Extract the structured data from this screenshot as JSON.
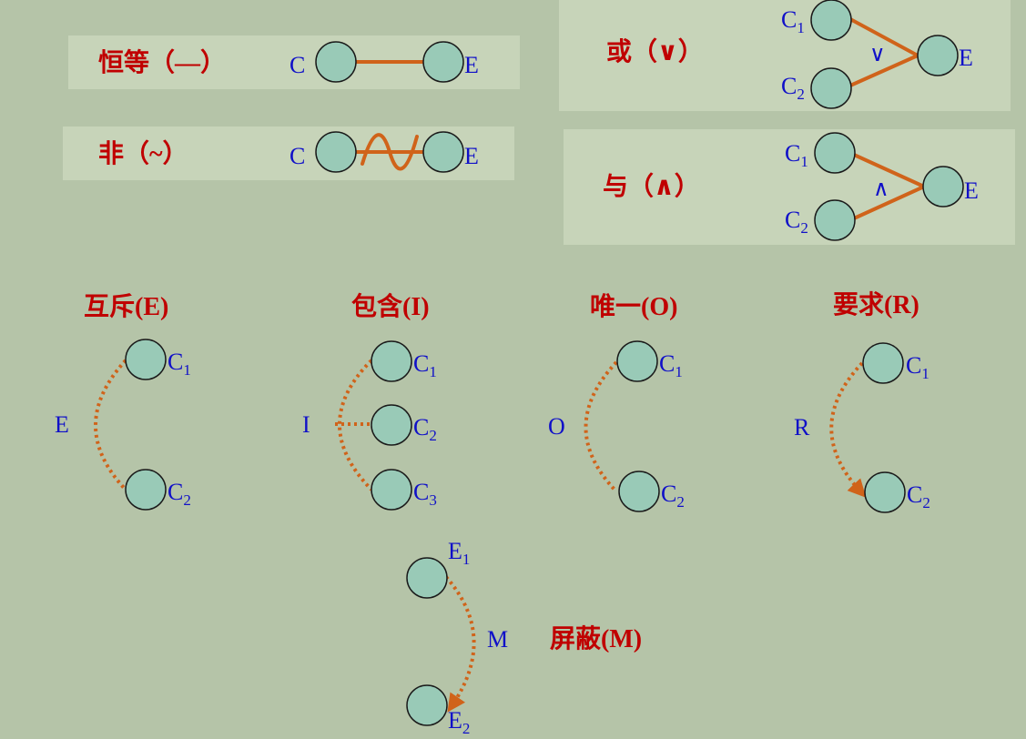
{
  "colors": {
    "background": "#b5c4a8",
    "panel": "#c7d4b9",
    "node_fill": "#99cab7",
    "link": "#d0631a",
    "title": "#c00000",
    "label": "#1010c8"
  },
  "identity": {
    "title": "恒等（—）",
    "cause": "C",
    "effect": "E"
  },
  "negation": {
    "title": "非（~）",
    "cause": "C",
    "effect": "E"
  },
  "or": {
    "title": "或（∨）",
    "c1": "C",
    "c1_sub": "1",
    "c2": "C",
    "c2_sub": "2",
    "symbol": "∨",
    "effect": "E"
  },
  "and": {
    "title": "与（∧）",
    "c1": "C",
    "c1_sub": "1",
    "c2": "C",
    "c2_sub": "2",
    "symbol": "∧",
    "effect": "E"
  },
  "exclusive": {
    "title": "互斥(E)",
    "label": "E",
    "n1": "C",
    "n1_sub": "1",
    "n2": "C",
    "n2_sub": "2"
  },
  "inclusive": {
    "title": "包含(I)",
    "label": "I",
    "n1": "C",
    "n1_sub": "1",
    "n2": "C",
    "n2_sub": "2",
    "n3": "C",
    "n3_sub": "3"
  },
  "one_and_only": {
    "title": "唯一(O)",
    "label": "O",
    "n1": "C",
    "n1_sub": "1",
    "n2": "C",
    "n2_sub": "2"
  },
  "requires": {
    "title": "要求(R)",
    "label": "R",
    "n1": "C",
    "n1_sub": "1",
    "n2": "C",
    "n2_sub": "2"
  },
  "masks": {
    "title": "屏蔽(M)",
    "label": "M",
    "n1": "E",
    "n1_sub": "1",
    "n2": "E",
    "n2_sub": "2"
  }
}
